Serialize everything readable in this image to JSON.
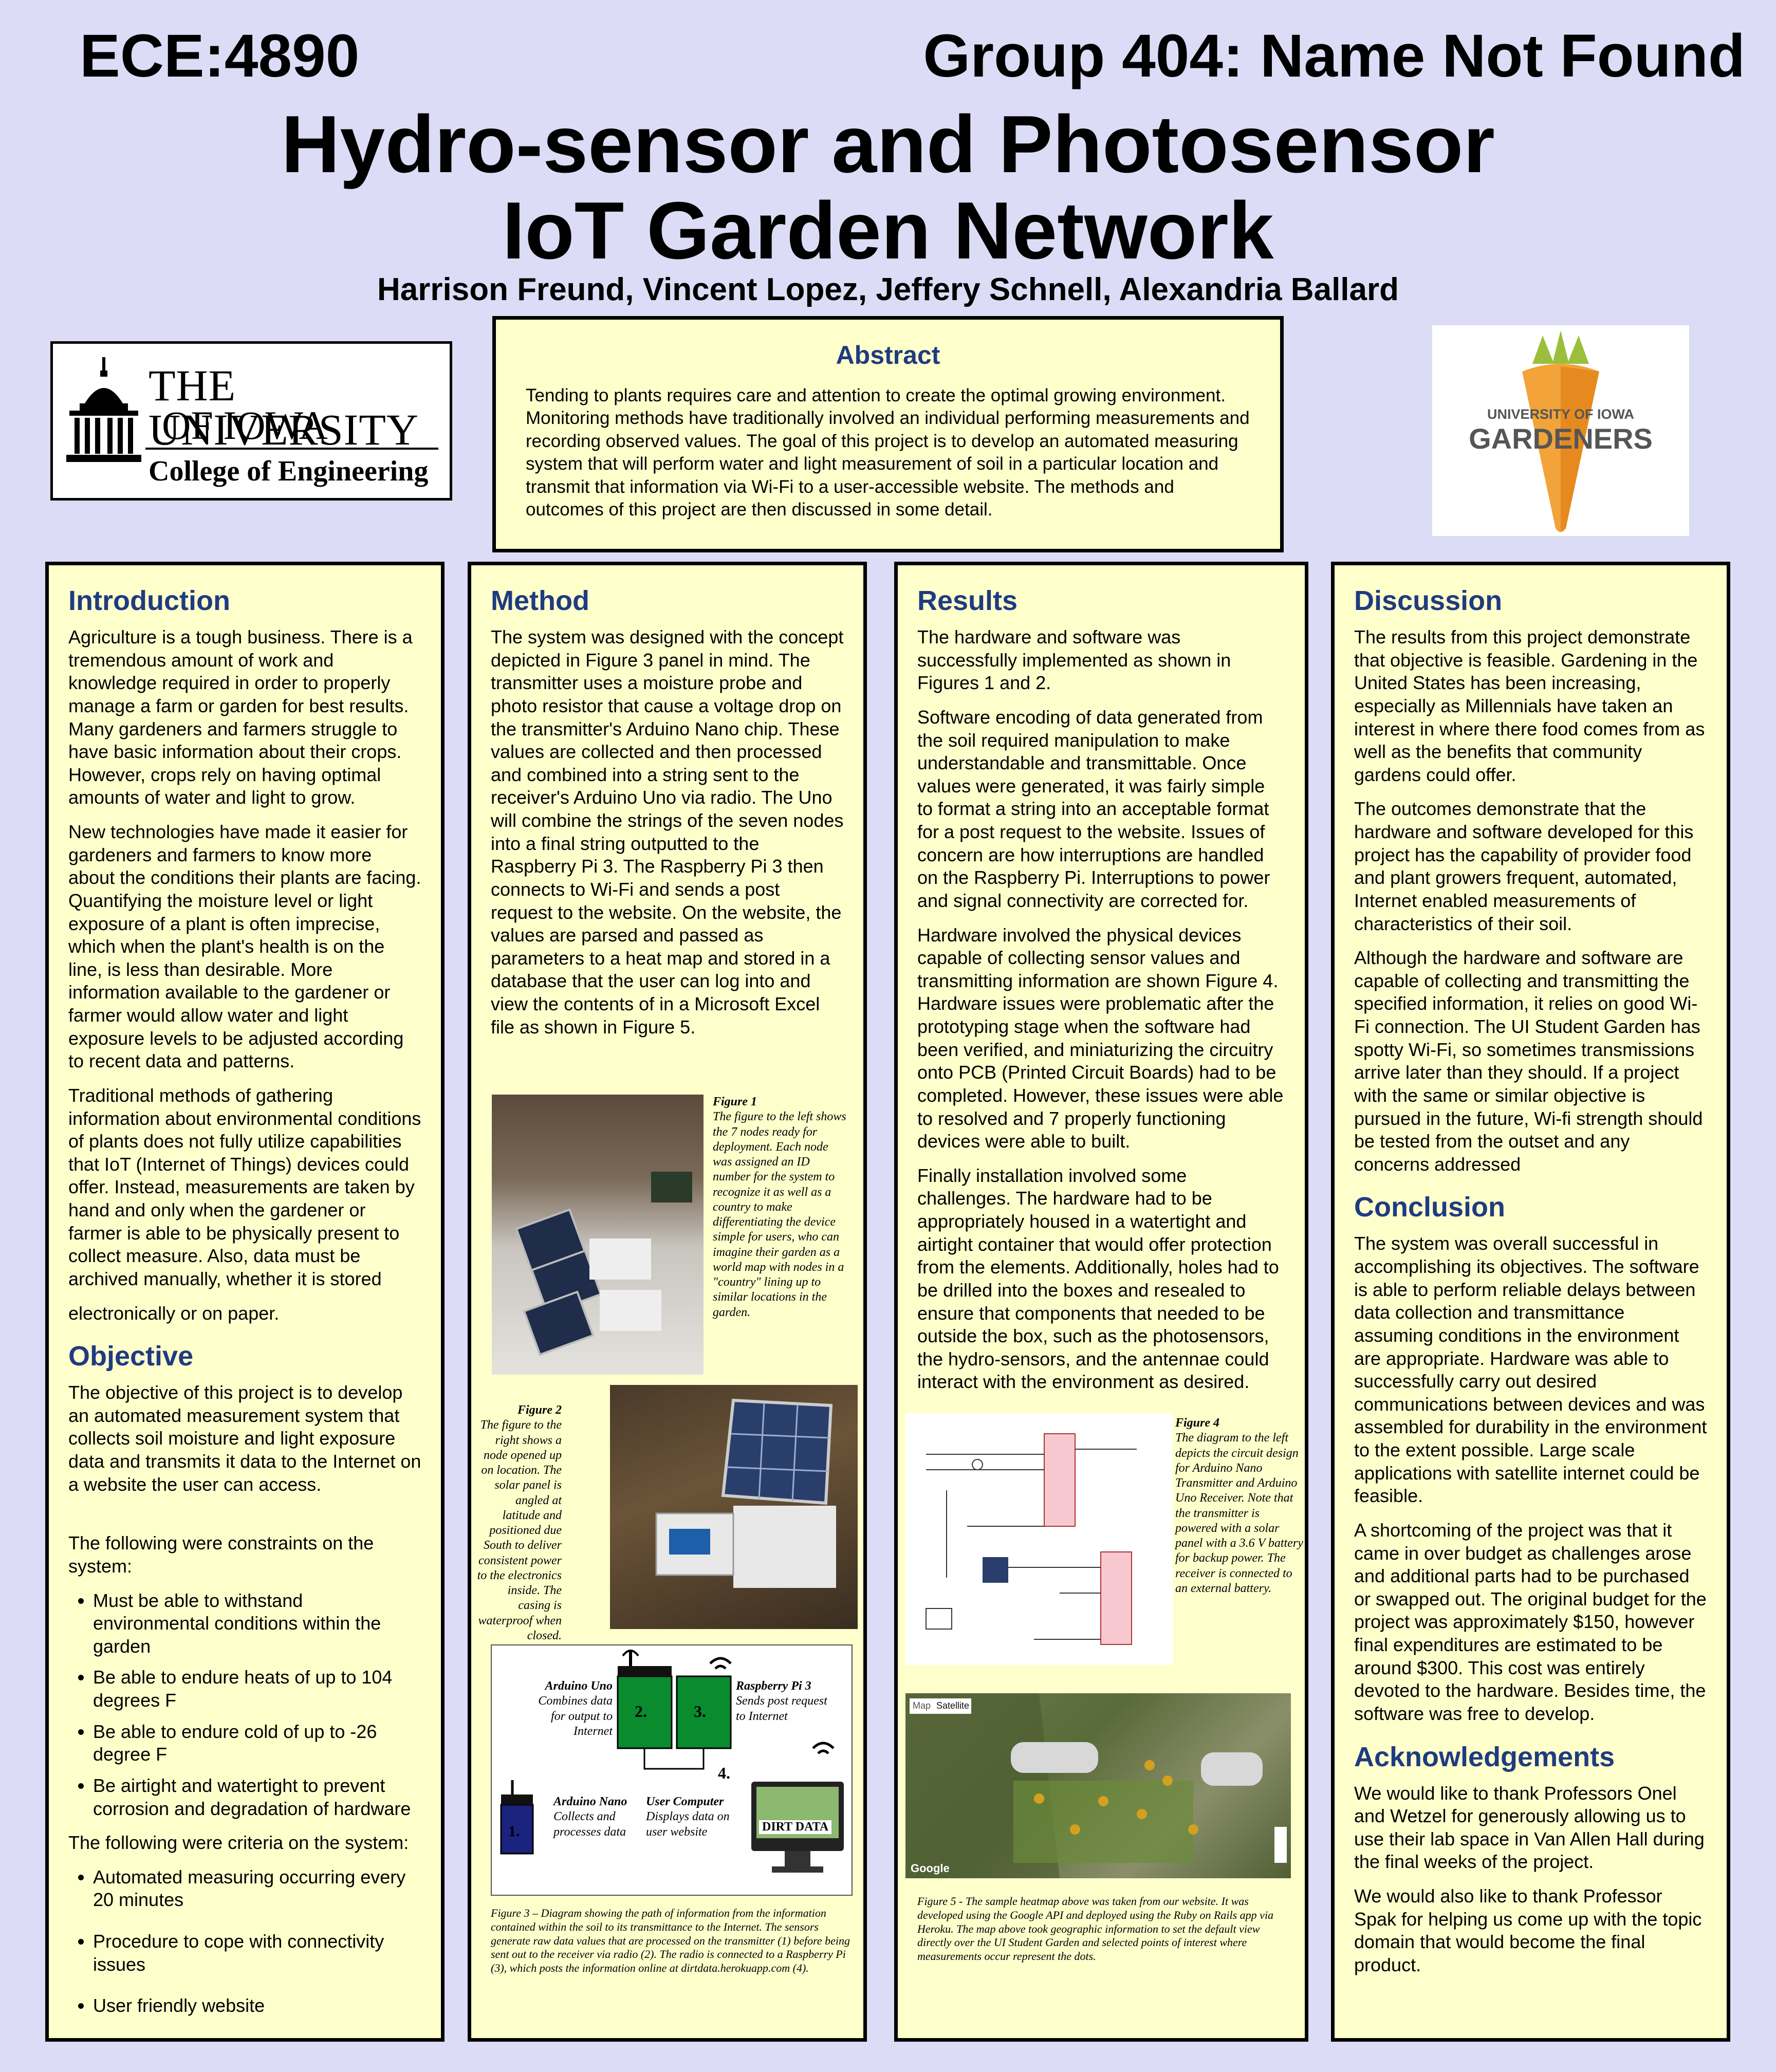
{
  "header": {
    "course": "ECE:4890",
    "group": "Group 404: Name Not Found",
    "title_line1": "Hydro-sensor and Photosensor",
    "title_line2": "IoT Garden Network",
    "authors": "Harrison Freund, Vincent Lopez, Jeffery Schnell, Alexandria Ballard"
  },
  "logos": {
    "uiowa_line1": "THE UNIVERSITY",
    "uiowa_line2": "OF IOWA",
    "uiowa_line3": "College of Engineering",
    "gardeners_line1": "UNIVERSITY OF IOWA",
    "gardeners_line2": "GARDENERS"
  },
  "abstract": {
    "heading": "Abstract",
    "text": "Tending to plants requires care and attention to create the optimal growing environment. Monitoring methods have traditionally involved an individual performing measurements and recording observed values. The goal of this project is to develop an automated measuring system that will perform water and light measurement of soil in a particular location and transmit that information via Wi-Fi to a user-accessible website. The methods and outcomes of this project are then discussed in some detail."
  },
  "introduction": {
    "heading": "Introduction",
    "p1": "Agriculture is a tough business. There is a tremendous amount of work and knowledge required in order to properly manage a farm or garden for best results. Many gardeners and farmers struggle to have basic information about their crops. However, crops rely on having optimal amounts of water and light to grow.",
    "p2": "New technologies have made it easier for gardeners and farmers to know more about the conditions their plants are facing. Quantifying the moisture level or light exposure of a plant is often imprecise, which when the plant's health is on the line, is less than desirable. More information available to the gardener or farmer would allow water and light exposure levels to be adjusted according to recent data and patterns.",
    "p3": "Traditional methods of gathering information about environmental conditions of plants does not fully utilize capabilities that IoT (Internet of Things) devices could offer. Instead, measurements are taken by hand and only when the gardener or farmer is able to be physically present to collect measure. Also, data must be archived manually, whether it is stored",
    "p4": "electronically or on paper."
  },
  "objective": {
    "heading": "Objective",
    "p1": "The objective of this project is to develop an automated measurement system that collects soil moisture and light exposure data and transmits it data to the Internet on a website the user can access.",
    "p2": "The following were constraints on the system:",
    "constraints": [
      "Must be able to withstand environmental conditions within the garden",
      "Be able to endure heats of up to 104 degrees F",
      "Be able to endure cold of up to -26 degree F",
      "Be airtight and watertight to prevent corrosion and degradation of hardware"
    ],
    "p3": "The following were criteria on the system:",
    "criteria": [
      "Automated measuring occurring every 20 minutes",
      "Procedure to cope with connectivity issues",
      "User friendly website"
    ]
  },
  "method": {
    "heading": "Method",
    "p1": "The system was designed with the concept depicted in Figure 3 panel in mind. The transmitter uses a moisture probe and photo resistor that cause a voltage drop on the transmitter's Arduino Nano chip. These values are collected and then processed and combined into a string sent to the receiver's Arduino Uno via radio. The Uno will combine the strings of the seven nodes into a final string outputted to the Raspberry Pi 3. The Raspberry Pi 3 then connects to Wi-Fi and sends a post request to the website. On the website, the values are parsed and passed as parameters to a heat map and stored in a database that the user can log into and view the contents of in a Microsoft Excel file as shown in Figure 5."
  },
  "figure1": {
    "label": "Figure 1",
    "text": "The figure to the left shows the 7 nodes ready for deployment. Each node was assigned an ID number for the system to recognize it as well as a country to make differentiating the device simple for users, who can imagine their garden as a world map with nodes in a \"country\" lining up to similar locations in the garden."
  },
  "figure2": {
    "label": "Figure 2",
    "text": "The figure to the right shows a node opened up on location. The solar panel is angled at latitude and positioned due South to deliver consistent power to the electronics inside. The casing is waterproof when closed."
  },
  "figure3": {
    "uno_title": "Arduino Uno",
    "uno_text": "Combines data for output to Internet",
    "pi_title": "Raspberry Pi 3",
    "pi_text": "Sends post request to Internet",
    "nano_title": "Arduino Nano",
    "nano_text": "Collects and processes data",
    "computer_title": "User Computer",
    "computer_text": "Displays data on user website",
    "n1": "1.",
    "n2": "2.",
    "n3": "3.",
    "n4": "4.",
    "screen_label": "DIRT DATA",
    "caption": "Figure 3 – Diagram showing the path of information from the information contained within the soil to its transmittance to the Internet. The sensors generate raw data values that are processed on the transmitter (1) before being sent out to the receiver via radio (2). The radio is connected to a Raspberry Pi (3), which posts the information online at dirtdata.herokuapp.com (4)."
  },
  "results": {
    "heading": "Results",
    "p1": "The hardware and software was successfully implemented as shown in Figures 1 and 2.",
    "p2": "Software encoding of data generated from the soil required manipulation to make understandable and transmittable. Once values were generated, it was fairly simple to format a string into an acceptable format for a post request to the website. Issues of concern are how interruptions are handled on the Raspberry Pi. Interruptions to power and signal connectivity are corrected for.",
    "p3": "Hardware involved the physical devices capable of collecting sensor values and transmitting information are shown Figure 4. Hardware issues were problematic after the prototyping stage when the software had been verified, and miniaturizing the circuitry onto PCB (Printed Circuit Boards) had to be completed. However, these issues were able to resolved and 7 properly functioning devices were able to built.",
    "p4": "Finally installation involved some challenges. The hardware had to be appropriately housed in a watertight and airtight container that would offer protection from the elements. Additionally, holes had to be drilled into the boxes and resealed to ensure that components that needed to be outside the box, such as the photosensors, the hydro-sensors, and the antennae could interact with the environment as desired."
  },
  "figure4": {
    "label": "Figure 4",
    "text": "The diagram to the left depicts the circuit design for Arduino Nano Transmitter and Arduino Uno Receiver. Note that the transmitter is powered with a solar panel with a 3.6 V battery for backup power. The receiver is connected to an external battery."
  },
  "figure5": {
    "map_tab1": "Map",
    "map_tab2": "Satellite",
    "google": "Google",
    "caption": "Figure 5 - The sample heatmap above was taken from our website. It was developed using the Google API and deployed using the Ruby on Rails app via Heroku. The map above took geographic information to set the default view directly over the UI Student Garden and selected points of interest where measurements occur represent the dots."
  },
  "discussion": {
    "heading": "Discussion",
    "p1": "The results from this project demonstrate that objective is feasible. Gardening in the United States has been increasing, especially as Millennials have taken an interest in where there food comes from as well as the benefits that community gardens could offer.",
    "p2": "The outcomes demonstrate that the hardware and software developed for this project has the capability of provider food and plant growers frequent, automated, Internet enabled measurements of characteristics of their soil.",
    "p3": "Although the hardware and software are capable of collecting and transmitting the specified information, it relies on good Wi-Fi connection. The UI Student Garden has spotty Wi-Fi, so sometimes transmissions arrive later than they should. If a project with the same or similar objective is pursued in the future, Wi-fi strength should be tested from the outset and any concerns addressed"
  },
  "conclusion": {
    "heading": "Conclusion",
    "p1": "The system was overall successful in accomplishing its objectives. The software is able to perform reliable delays between data collection and transmittance assuming conditions in the environment are appropriate. Hardware was able to successfully carry out desired communications between devices and was assembled for durability in the environment to the extent possible. Large scale applications with satellite internet could be feasible.",
    "p2": "A shortcoming of the project was that it came in over budget as challenges arose and additional parts had to be purchased or swapped out. The original budget for the project was approximately $150, however final expenditures are estimated to be around $300. This cost was entirely devoted to the hardware. Besides time, the software was free to develop."
  },
  "acknowledgements": {
    "heading": "Acknowledgements",
    "p1": "We would like to thank Professors Onel and Wetzel for generously allowing us to use their lab space in Van Allen Hall during the final weeks of the project.",
    "p2": "We would also like to thank Professor Spak for helping us come up with the topic domain that would become the final product."
  },
  "colors": {
    "background": "#dcdcf6",
    "panel": "#ffffcc",
    "heading": "#1f3b80"
  }
}
